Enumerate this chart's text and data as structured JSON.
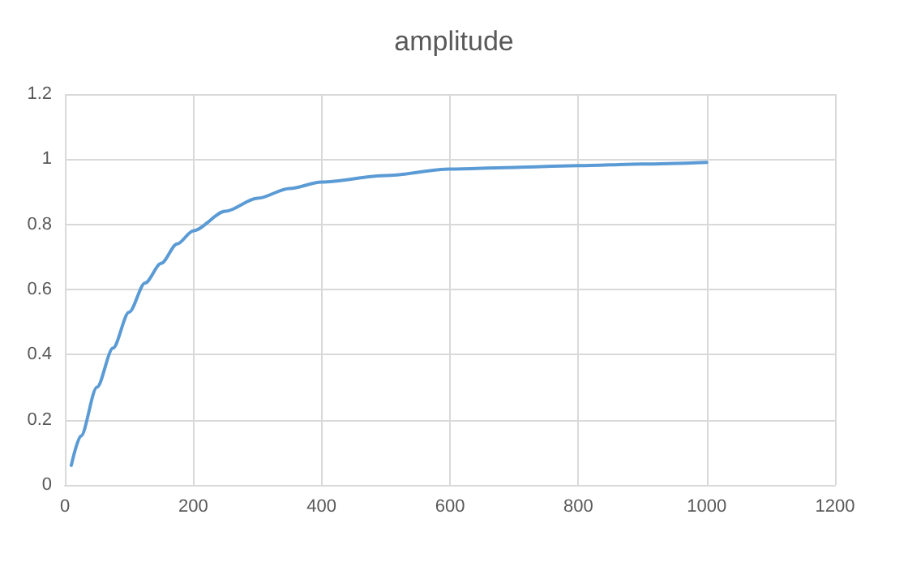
{
  "chart_data": {
    "type": "line",
    "title": "amplitude",
    "x": [
      10,
      25,
      50,
      75,
      100,
      125,
      150,
      175,
      200,
      250,
      300,
      350,
      400,
      500,
      600,
      700,
      800,
      900,
      1000
    ],
    "series": [
      {
        "color": "#5b9bd5",
        "values": [
          0.06,
          0.15,
          0.3,
          0.42,
          0.53,
          0.62,
          0.68,
          0.74,
          0.78,
          0.84,
          0.88,
          0.91,
          0.93,
          0.95,
          0.97,
          0.975,
          0.98,
          0.985,
          0.99
        ]
      }
    ],
    "xlim": [
      0,
      1200
    ],
    "xticks": [
      0,
      200,
      400,
      600,
      800,
      1000,
      1200
    ],
    "ylim": [
      0,
      1.2
    ],
    "yticks": [
      0,
      0.2,
      0.4,
      0.6,
      0.8,
      1,
      1.2
    ],
    "grid": true,
    "marker": "none",
    "line_style": "solid"
  }
}
